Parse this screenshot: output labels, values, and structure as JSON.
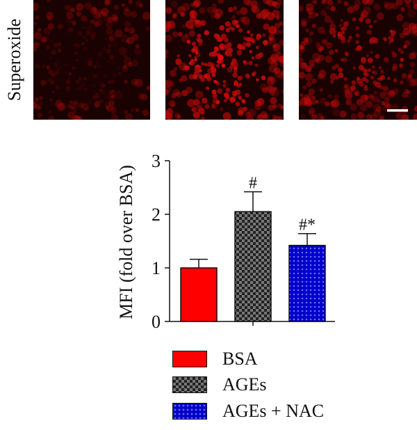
{
  "panel": {
    "row_label": "Superoxide"
  },
  "colors": {
    "bsa": "#ff0000",
    "ages": "#3a3a3a",
    "nac": "#0000c8",
    "fluorescence": "#e01010"
  },
  "chart_data": {
    "type": "bar",
    "categories": [
      "BSA",
      "AGEs",
      "AGEs + NAC"
    ],
    "series": [
      {
        "values": [
          1.0,
          2.05,
          1.42
        ],
        "errors": [
          0.16,
          0.37,
          0.22
        ]
      }
    ],
    "annotations": [
      "",
      "#",
      "#*"
    ],
    "ylabel": "MFI (fold over BSA)",
    "ylim": [
      0,
      3
    ],
    "yticks": [
      0,
      1,
      2,
      3
    ],
    "grid": false,
    "legend_position": "bottom",
    "legend": [
      "BSA",
      "AGEs",
      "AGEs + NAC"
    ]
  }
}
